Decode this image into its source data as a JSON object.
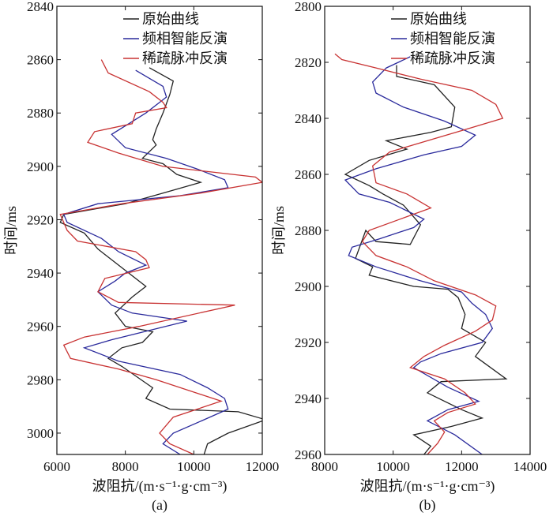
{
  "chart_data": [
    {
      "type": "line",
      "panel_label": "(a)",
      "xlabel": "波阻抗/(m·s⁻¹·g·cm⁻³)",
      "ylabel": "时间/ms",
      "xlim": [
        6000,
        12000
      ],
      "ylim": [
        2840,
        3008
      ],
      "y_inverted": true,
      "x_ticks": [
        6000,
        8000,
        10000,
        12000
      ],
      "y_ticks": [
        2840,
        2860,
        2880,
        2900,
        2920,
        2940,
        2960,
        2980,
        3000
      ],
      "legend_position": "top-right",
      "series": [
        {
          "name": "原始曲线",
          "color": "#222222",
          "x": [
            8700,
            9400,
            9300,
            9100,
            8900,
            8800,
            8900,
            8500,
            9100,
            9500,
            10200,
            9100,
            8000,
            6200,
            6100,
            6800,
            7200,
            7700,
            8300,
            8600,
            8200,
            7700,
            8000,
            8800,
            8500,
            7900,
            7500,
            7900,
            8800,
            8600,
            9300,
            11300,
            12100,
            11000,
            10400,
            10300
          ],
          "y": [
            2863,
            2868,
            2873,
            2880,
            2886,
            2890,
            2892,
            2897,
            2899,
            2903,
            2906,
            2910,
            2914,
            2918,
            2921,
            2925,
            2931,
            2936,
            2942,
            2945,
            2949,
            2955,
            2960,
            2962,
            2966,
            2968,
            2972,
            2975,
            2983,
            2987,
            2991,
            2992,
            2995,
            3000,
            3004,
            3008
          ]
        },
        {
          "name": "频相智能反演",
          "color": "#2a2a9c",
          "x": [
            8300,
            9100,
            9200,
            8600,
            8100,
            7600,
            8000,
            9200,
            10100,
            10900,
            11000,
            9600,
            7200,
            6200,
            6300,
            7300,
            7800,
            8600,
            8000,
            7700,
            7200,
            7600,
            8200,
            9800,
            7600,
            6800,
            7800,
            9600,
            10400,
            10900,
            11000,
            10300,
            9400,
            9100,
            9600
          ],
          "y": [
            2864,
            2870,
            2874,
            2880,
            2884,
            2888,
            2893,
            2897,
            2901,
            2905,
            2908,
            2911,
            2914,
            2918,
            2921,
            2927,
            2932,
            2937,
            2940,
            2943,
            2947,
            2952,
            2955,
            2958,
            2965,
            2968,
            2973,
            2978,
            2983,
            2987,
            2991,
            2995,
            3000,
            3004,
            3008
          ]
        },
        {
          "name": "稀疏脉冲反演",
          "color": "#c83232",
          "x": [
            7300,
            7500,
            8700,
            9100,
            9200,
            8300,
            8200,
            7100,
            6900,
            7800,
            9100,
            11800,
            12000,
            10200,
            7900,
            6100,
            6300,
            6600,
            8300,
            8600,
            8700,
            7400,
            7200,
            7800,
            11200,
            8400,
            6800,
            6200,
            6400,
            7800,
            8900,
            10800,
            9400,
            9000,
            9300,
            10000
          ],
          "y": [
            2860,
            2865,
            2872,
            2876,
            2878,
            2880,
            2884,
            2887,
            2891,
            2895,
            2900,
            2904,
            2906,
            2910,
            2914,
            2918,
            2924,
            2928,
            2932,
            2935,
            2938,
            2942,
            2947,
            2951,
            2952,
            2960,
            2964,
            2967,
            2972,
            2976,
            2980,
            2988,
            2994,
            3000,
            3004,
            3008
          ]
        }
      ]
    },
    {
      "type": "line",
      "panel_label": "(b)",
      "xlabel": "波阻抗/(m·s⁻¹·g·cm⁻³)",
      "ylabel": "时间/ms",
      "xlim": [
        8000,
        14000
      ],
      "ylim": [
        2800,
        2960
      ],
      "y_inverted": true,
      "x_ticks": [
        8000,
        10000,
        12000,
        14000
      ],
      "y_ticks": [
        2800,
        2820,
        2840,
        2860,
        2880,
        2900,
        2920,
        2940,
        2960
      ],
      "legend_position": "top-right",
      "series": [
        {
          "name": "原始曲线",
          "color": "#222222",
          "x": [
            10100,
            10100,
            11200,
            11800,
            11700,
            11100,
            9800,
            10400,
            9300,
            8600,
            9300,
            9700,
            10300,
            10800,
            10500,
            9500,
            9200,
            8900,
            9400,
            9300,
            10600,
            11600,
            11900,
            12100,
            12000,
            12700,
            12400,
            13300,
            11400,
            11000,
            12000,
            12600,
            11700,
            10600,
            11100,
            10900
          ],
          "y": [
            2821,
            2825,
            2828,
            2836,
            2843,
            2845,
            2848,
            2851,
            2855,
            2860,
            2864,
            2867,
            2871,
            2878,
            2885,
            2884,
            2880,
            2890,
            2893,
            2896,
            2900,
            2901,
            2904,
            2910,
            2915,
            2920,
            2925,
            2933,
            2934,
            2938,
            2944,
            2947,
            2950,
            2953,
            2957,
            2960
          ]
        },
        {
          "name": "频相智能反演",
          "color": "#2a2a9c",
          "x": [
            10500,
            9800,
            9400,
            9500,
            10300,
            11500,
            12400,
            12000,
            10900,
            9500,
            8600,
            9000,
            9900,
            10900,
            10600,
            9600,
            8800,
            8700,
            9500,
            10800,
            12000,
            12300,
            12700,
            12900,
            12600,
            11400,
            10800,
            10600,
            11600,
            12500,
            11600,
            11000,
            11800,
            12600
          ],
          "y": [
            2818,
            2822,
            2827,
            2831,
            2836,
            2841,
            2846,
            2850,
            2853,
            2858,
            2862,
            2867,
            2870,
            2876,
            2879,
            2883,
            2886,
            2889,
            2893,
            2898,
            2902,
            2906,
            2910,
            2915,
            2920,
            2924,
            2927,
            2929,
            2936,
            2941,
            2944,
            2948,
            2953,
            2960
          ]
        },
        {
          "name": "稀疏脉冲反演",
          "color": "#c83232",
          "x": [
            8300,
            8500,
            9500,
            10800,
            12300,
            13000,
            13200,
            12100,
            11000,
            9900,
            9400,
            9500,
            10400,
            11100,
            10200,
            9300,
            9100,
            9500,
            10400,
            11200,
            12400,
            13000,
            12900,
            12400,
            11500,
            10900,
            10500,
            11500,
            12100,
            12400,
            11600,
            11200,
            11500,
            11300,
            11000
          ],
          "y": [
            2817,
            2819,
            2822,
            2826,
            2830,
            2835,
            2840,
            2844,
            2848,
            2852,
            2857,
            2863,
            2867,
            2872,
            2876,
            2880,
            2884,
            2889,
            2893,
            2898,
            2903,
            2907,
            2912,
            2916,
            2921,
            2925,
            2929,
            2933,
            2938,
            2942,
            2945,
            2948,
            2952,
            2956,
            2960
          ]
        }
      ]
    }
  ]
}
